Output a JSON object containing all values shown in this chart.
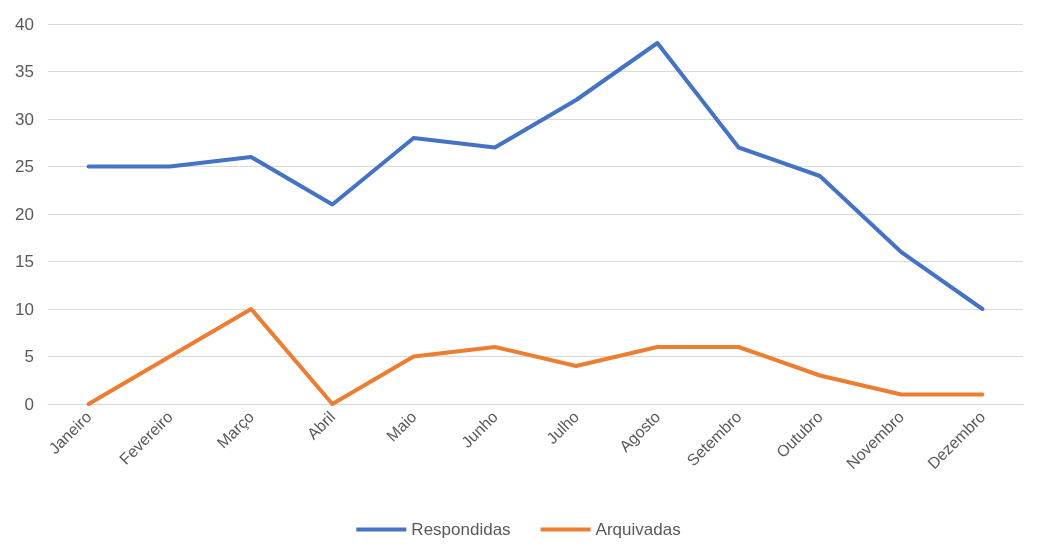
{
  "chart_data": {
    "type": "line",
    "categories": [
      "Janeiro",
      "Fevereiro",
      "Março",
      "Abril",
      "Maio",
      "Junho",
      "Julho",
      "Agosto",
      "Setembro",
      "Outubro",
      "Novembro",
      "Dezembro"
    ],
    "series": [
      {
        "name": "Respondidas",
        "color": "#4472c4",
        "values": [
          25,
          25,
          26,
          21,
          28,
          27,
          32,
          38,
          27,
          24,
          16,
          10
        ]
      },
      {
        "name": "Arquivadas",
        "color": "#ed7d31",
        "values": [
          0,
          5,
          10,
          0,
          5,
          6,
          4,
          6,
          6,
          3,
          1,
          1
        ]
      }
    ],
    "ylim": [
      0,
      40
    ],
    "yticks": [
      0,
      5,
      10,
      15,
      20,
      25,
      30,
      35,
      40
    ],
    "grid": "y",
    "legend": "bottom",
    "marker": "none",
    "line_style": "solid"
  }
}
